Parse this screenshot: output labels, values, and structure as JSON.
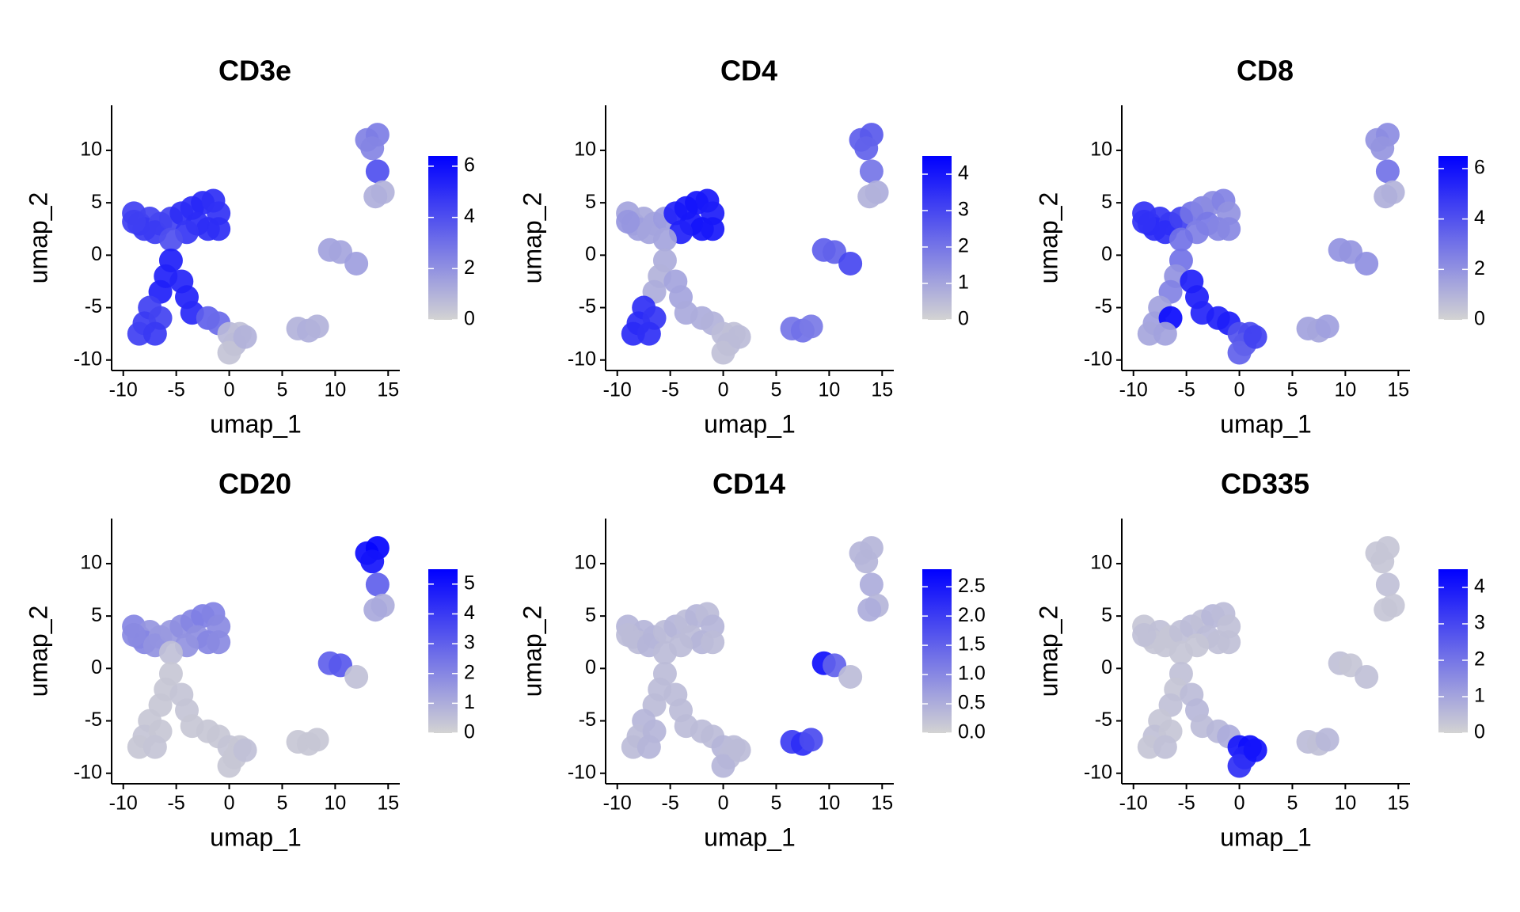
{
  "chart_data": [
    {
      "type": "scatter",
      "title": "CD3e",
      "x_label": "umap_1",
      "y_label": "umap_2",
      "x": [
        -9,
        -8.5,
        -7.5,
        -8,
        -6.5,
        -9,
        -7,
        -5.5,
        -4.5,
        -3.5,
        -2.5,
        -1.5,
        -1,
        -3,
        -2,
        -4,
        -1,
        -5.5,
        -5.5,
        -6,
        -4.5,
        -6.5,
        -4,
        -3.5,
        -7.5,
        -8,
        -6.5,
        -8.5,
        -7,
        -2,
        -1,
        0,
        1,
        0.5,
        0,
        1.5,
        6.5,
        7.5,
        8.3,
        9.5,
        10.5,
        12,
        13,
        14,
        13.5,
        14,
        14.5,
        13.8
      ],
      "y": [
        4,
        3,
        3.5,
        2.5,
        3,
        3.2,
        2.2,
        3.5,
        4,
        4.5,
        5,
        5.2,
        4,
        3,
        2.5,
        2.2,
        2.5,
        1.5,
        -0.5,
        -2,
        -2.5,
        -3.5,
        -4,
        -5.5,
        -5,
        -6.5,
        -6,
        -7.5,
        -7.5,
        -6,
        -6.5,
        -7.5,
        -7.5,
        -8.5,
        -9.3,
        -7.8,
        -7,
        -7.2,
        -6.8,
        0.5,
        0.3,
        -0.8,
        11,
        11.5,
        10.2,
        8,
        6,
        5.6
      ],
      "values": [
        4.5,
        4.6,
        4.4,
        4.7,
        4.3,
        4.5,
        4.6,
        4.4,
        5,
        5.1,
        5.2,
        5,
        4.9,
        5.1,
        5,
        4.8,
        5,
        4,
        5.5,
        5.4,
        5.3,
        5.5,
        5.4,
        5.2,
        4.5,
        4.6,
        4.4,
        4.5,
        4.7,
        3.5,
        3.2,
        0.8,
        0.6,
        0.7,
        0.5,
        1,
        1,
        1.1,
        1,
        1.5,
        1.4,
        1.6,
        2.5,
        2.6,
        2.4,
        4,
        1,
        1.1
      ],
      "xlim": [
        -11.1,
        16.1
      ],
      "ylim": [
        -11,
        14.3
      ],
      "xticks": [
        -10,
        -5,
        0,
        5,
        10,
        15
      ],
      "yticks": [
        -10,
        -5,
        0,
        5,
        10
      ],
      "clim": [
        0,
        6.4
      ],
      "cticks": [
        0,
        2,
        4,
        6
      ],
      "low_color": "#d3d3d3",
      "high_color": "#0000ff"
    },
    {
      "type": "scatter",
      "title": "CD4",
      "x_label": "umap_1",
      "y_label": "umap_2",
      "x": [
        -9,
        -8.5,
        -7.5,
        -8,
        -6.5,
        -9,
        -7,
        -5.5,
        -4.5,
        -3.5,
        -2.5,
        -1.5,
        -1,
        -3,
        -2,
        -4,
        -1,
        -5.5,
        -5.5,
        -6,
        -4.5,
        -6.5,
        -4,
        -3.5,
        -7.5,
        -8,
        -6.5,
        -8.5,
        -7,
        -2,
        -1,
        0,
        1,
        0.5,
        0,
        1.5,
        6.5,
        7.5,
        8.3,
        9.5,
        10.5,
        12,
        13,
        14,
        13.5,
        14,
        14.5,
        13.8
      ],
      "y": [
        4,
        3,
        3.5,
        2.5,
        3,
        3.2,
        2.2,
        3.5,
        4,
        4.5,
        5,
        5.2,
        4,
        3,
        2.5,
        2.2,
        2.5,
        1.5,
        -0.5,
        -2,
        -2.5,
        -3.5,
        -4,
        -5.5,
        -5,
        -6.5,
        -6,
        -7.5,
        -7.5,
        -6,
        -6.5,
        -7.5,
        -7.5,
        -8.5,
        -9.3,
        -7.8,
        -7,
        -7.2,
        -6.8,
        0.5,
        0.3,
        -0.8,
        11,
        11.5,
        10.2,
        8,
        6,
        5.6
      ],
      "values": [
        1,
        1.2,
        0.9,
        1.1,
        1,
        1.3,
        1,
        1.2,
        3.8,
        4,
        4.1,
        4,
        3.9,
        4,
        4.1,
        3.8,
        4,
        1,
        0.8,
        0.7,
        1,
        0.8,
        1,
        0.9,
        3.5,
        3.6,
        3.4,
        3.6,
        3.5,
        0.8,
        0.7,
        0.5,
        0.4,
        0.5,
        0.4,
        0.5,
        2,
        2.1,
        1.9,
        2.5,
        2.4,
        3,
        2.5,
        2.6,
        2.4,
        2,
        0.8,
        0.7
      ],
      "xlim": [
        -11.1,
        16.1
      ],
      "ylim": [
        -11,
        14.3
      ],
      "xticks": [
        -10,
        -5,
        0,
        5,
        10,
        15
      ],
      "yticks": [
        -10,
        -5,
        0,
        5,
        10
      ],
      "clim": [
        0,
        4.5
      ],
      "cticks": [
        0,
        1,
        2,
        3,
        4
      ],
      "low_color": "#d3d3d3",
      "high_color": "#0000ff"
    },
    {
      "type": "scatter",
      "title": "CD8",
      "x_label": "umap_1",
      "y_label": "umap_2",
      "x": [
        -9,
        -8.5,
        -7.5,
        -8,
        -6.5,
        -9,
        -7,
        -5.5,
        -4.5,
        -3.5,
        -2.5,
        -1.5,
        -1,
        -3,
        -2,
        -4,
        -1,
        -5.5,
        -5.5,
        -6,
        -4.5,
        -6.5,
        -4,
        -3.5,
        -7.5,
        -8,
        -6.5,
        -8.5,
        -7,
        -2,
        -1,
        0,
        1,
        0.5,
        0,
        1.5,
        6.5,
        7.5,
        8.3,
        9.5,
        10.5,
        12,
        13,
        14,
        13.5,
        14,
        14.5,
        13.8
      ],
      "y": [
        4,
        3,
        3.5,
        2.5,
        3,
        3.2,
        2.2,
        3.5,
        4,
        4.5,
        5,
        5.2,
        4,
        3,
        2.5,
        2.2,
        2.5,
        1.5,
        -0.5,
        -2,
        -2.5,
        -3.5,
        -4,
        -5.5,
        -5,
        -6.5,
        -6,
        -7.5,
        -7.5,
        -6,
        -6.5,
        -7.5,
        -7.5,
        -8.5,
        -9.3,
        -7.8,
        -7,
        -7.2,
        -6.8,
        0.5,
        0.3,
        -0.8,
        11,
        11.5,
        10.2,
        8,
        6,
        5.6
      ],
      "values": [
        5,
        5.1,
        4.9,
        5.2,
        4.8,
        5,
        5.1,
        4.5,
        3,
        2.5,
        2.2,
        2.5,
        2,
        2.8,
        2.4,
        2.6,
        2.3,
        3,
        3,
        2,
        5.5,
        2.5,
        5.6,
        5.4,
        1.5,
        1.6,
        6.2,
        1.4,
        1.5,
        5.5,
        5.6,
        4,
        4.2,
        3.8,
        3.5,
        4.5,
        1.5,
        1.4,
        1.6,
        2,
        1.9,
        2.1,
        2,
        2.2,
        1.9,
        3,
        1,
        1.1
      ],
      "xlim": [
        -11.1,
        16.1
      ],
      "ylim": [
        -11,
        14.3
      ],
      "xticks": [
        -10,
        -5,
        0,
        5,
        10,
        15
      ],
      "yticks": [
        -10,
        -5,
        0,
        5,
        10
      ],
      "clim": [
        0,
        6.5
      ],
      "cticks": [
        0,
        2,
        4,
        6
      ],
      "low_color": "#d3d3d3",
      "high_color": "#0000ff"
    },
    {
      "type": "scatter",
      "title": "CD20",
      "x_label": "umap_1",
      "y_label": "umap_2",
      "x": [
        -9,
        -8.5,
        -7.5,
        -8,
        -6.5,
        -9,
        -7,
        -5.5,
        -4.5,
        -3.5,
        -2.5,
        -1.5,
        -1,
        -3,
        -2,
        -4,
        -1,
        -5.5,
        -5.5,
        -6,
        -4.5,
        -6.5,
        -4,
        -3.5,
        -7.5,
        -8,
        -6.5,
        -8.5,
        -7,
        -2,
        -1,
        0,
        1,
        0.5,
        0,
        1.5,
        6.5,
        7.5,
        8.3,
        9.5,
        10.5,
        12,
        13,
        14,
        13.5,
        14,
        14.5,
        13.8
      ],
      "y": [
        4,
        3,
        3.5,
        2.5,
        3,
        3.2,
        2.2,
        3.5,
        4,
        4.5,
        5,
        5.2,
        4,
        3,
        2.5,
        2.2,
        2.5,
        1.5,
        -0.5,
        -2,
        -2.5,
        -3.5,
        -4,
        -5.5,
        -5,
        -6.5,
        -6,
        -7.5,
        -7.5,
        -6,
        -6.5,
        -7.5,
        -7.5,
        -8.5,
        -9.3,
        -7.8,
        -7,
        -7.2,
        -6.8,
        0.5,
        0.3,
        -0.8,
        11,
        11.5,
        10.2,
        8,
        6,
        5.6
      ],
      "values": [
        2,
        1.8,
        1.6,
        2,
        1.5,
        1.9,
        1.7,
        1.5,
        1.8,
        2,
        2.2,
        2.1,
        1.9,
        1.8,
        2,
        1.7,
        1.9,
        0.5,
        0.3,
        0.3,
        0.4,
        0.3,
        0.4,
        0.3,
        0.3,
        0.4,
        0.3,
        0.3,
        0.4,
        0.3,
        0.3,
        0.4,
        0.3,
        0.3,
        0.3,
        0.5,
        0.3,
        0.3,
        0.3,
        3,
        3.2,
        0.5,
        5.2,
        5.4,
        5,
        3,
        1,
        1.1
      ],
      "xlim": [
        -11.1,
        16.1
      ],
      "ylim": [
        -11,
        14.3
      ],
      "xticks": [
        -10,
        -5,
        0,
        5,
        10,
        15
      ],
      "yticks": [
        -10,
        -5,
        0,
        5,
        10
      ],
      "clim": [
        0,
        5.5
      ],
      "cticks": [
        0,
        1,
        2,
        3,
        4,
        5
      ],
      "low_color": "#d3d3d3",
      "high_color": "#0000ff"
    },
    {
      "type": "scatter",
      "title": "CD14",
      "x_label": "umap_1",
      "y_label": "umap_2",
      "x": [
        -9,
        -8.5,
        -7.5,
        -8,
        -6.5,
        -9,
        -7,
        -5.5,
        -4.5,
        -3.5,
        -2.5,
        -1.5,
        -1,
        -3,
        -2,
        -4,
        -1,
        -5.5,
        -5.5,
        -6,
        -4.5,
        -6.5,
        -4,
        -3.5,
        -7.5,
        -8,
        -6.5,
        -8.5,
        -7,
        -2,
        -1,
        0,
        1,
        0.5,
        0,
        1.5,
        6.5,
        7.5,
        8.3,
        9.5,
        10.5,
        12,
        13,
        14,
        13.5,
        14,
        14.5,
        13.8
      ],
      "y": [
        4,
        3,
        3.5,
        2.5,
        3,
        3.2,
        2.2,
        3.5,
        4,
        4.5,
        5,
        5.2,
        4,
        3,
        2.5,
        2.2,
        2.5,
        1.5,
        -0.5,
        -2,
        -2.5,
        -3.5,
        -4,
        -5.5,
        -5,
        -6.5,
        -6,
        -7.5,
        -7.5,
        -6,
        -6.5,
        -7.5,
        -7.5,
        -8.5,
        -9.3,
        -7.8,
        -7,
        -7.2,
        -6.8,
        0.5,
        0.3,
        -0.8,
        11,
        11.5,
        10.2,
        8,
        6,
        5.6
      ],
      "values": [
        0.4,
        0.3,
        0.4,
        0.3,
        0.4,
        0.3,
        0.4,
        0.3,
        0.4,
        0.3,
        0.4,
        0.3,
        0.4,
        0.3,
        0.4,
        0.3,
        0.3,
        0.3,
        0.3,
        0.3,
        0.3,
        0.3,
        0.3,
        0.3,
        0.4,
        0.3,
        0.4,
        0.3,
        0.4,
        0.3,
        0.3,
        0.4,
        0.3,
        0.3,
        0.4,
        0.3,
        2,
        2.2,
        1.8,
        2.6,
        1.5,
        0.3,
        0.4,
        0.4,
        0.4,
        0.5,
        0.4,
        0.5
      ],
      "xlim": [
        -11.1,
        16.1
      ],
      "ylim": [
        -11,
        14.3
      ],
      "xticks": [
        -10,
        -5,
        0,
        5,
        10,
        15
      ],
      "yticks": [
        -10,
        -5,
        0,
        5,
        10
      ],
      "clim": [
        0,
        2.8
      ],
      "cticks": [
        {
          "value": 0,
          "label": "0.0"
        },
        0.5,
        {
          "value": 1,
          "label": "1.0"
        },
        1.5,
        {
          "value": 2,
          "label": "2.0"
        },
        2.5
      ],
      "low_color": "#d3d3d3",
      "high_color": "#0000ff"
    },
    {
      "type": "scatter",
      "title": "CD335",
      "x_label": "umap_1",
      "y_label": "umap_2",
      "x": [
        -9,
        -8.5,
        -7.5,
        -8,
        -6.5,
        -9,
        -7,
        -5.5,
        -4.5,
        -3.5,
        -2.5,
        -1.5,
        -1,
        -3,
        -2,
        -4,
        -1,
        -5.5,
        -5.5,
        -6,
        -4.5,
        -6.5,
        -4,
        -3.5,
        -7.5,
        -8,
        -6.5,
        -8.5,
        -7,
        -2,
        -1,
        0,
        1,
        0.5,
        0,
        1.5,
        6.5,
        7.5,
        8.3,
        9.5,
        10.5,
        12,
        13,
        14,
        13.5,
        14,
        14.5,
        13.8
      ],
      "y": [
        4,
        3,
        3.5,
        2.5,
        3,
        3.2,
        2.2,
        3.5,
        4,
        4.5,
        5,
        5.2,
        4,
        3,
        2.5,
        2.2,
        2.5,
        1.5,
        -0.5,
        -2,
        -2.5,
        -3.5,
        -4,
        -5.5,
        -5,
        -6.5,
        -6,
        -7.5,
        -7.5,
        -6,
        -6.5,
        -7.5,
        -7.5,
        -8.5,
        -9.3,
        -7.8,
        -7,
        -7.2,
        -6.8,
        0.5,
        0.3,
        -0.8,
        11,
        11.5,
        10.2,
        8,
        6,
        5.6
      ],
      "values": [
        0.3,
        0.3,
        0.4,
        0.3,
        0.3,
        0.4,
        0.3,
        0.4,
        0.5,
        0.4,
        0.6,
        0.5,
        0.4,
        0.5,
        0.4,
        0.3,
        0.4,
        0.3,
        0.4,
        0.3,
        0.5,
        0.4,
        0.6,
        0.5,
        0.3,
        0.4,
        0.3,
        0.3,
        0.4,
        0.6,
        0.8,
        4,
        4.2,
        3.8,
        3.5,
        4.1,
        0.5,
        0.4,
        0.6,
        0.4,
        0.3,
        0.4,
        0.3,
        0.3,
        0.3,
        0.4,
        0.3,
        0.3
      ],
      "xlim": [
        -11.1,
        16.1
      ],
      "ylim": [
        -11,
        14.3
      ],
      "xticks": [
        -10,
        -5,
        0,
        5,
        10,
        15
      ],
      "yticks": [
        -10,
        -5,
        0,
        5,
        10
      ],
      "clim": [
        0,
        4.5
      ],
      "cticks": [
        0,
        1,
        2,
        3,
        4
      ],
      "low_color": "#d3d3d3",
      "high_color": "#0000ff"
    }
  ]
}
